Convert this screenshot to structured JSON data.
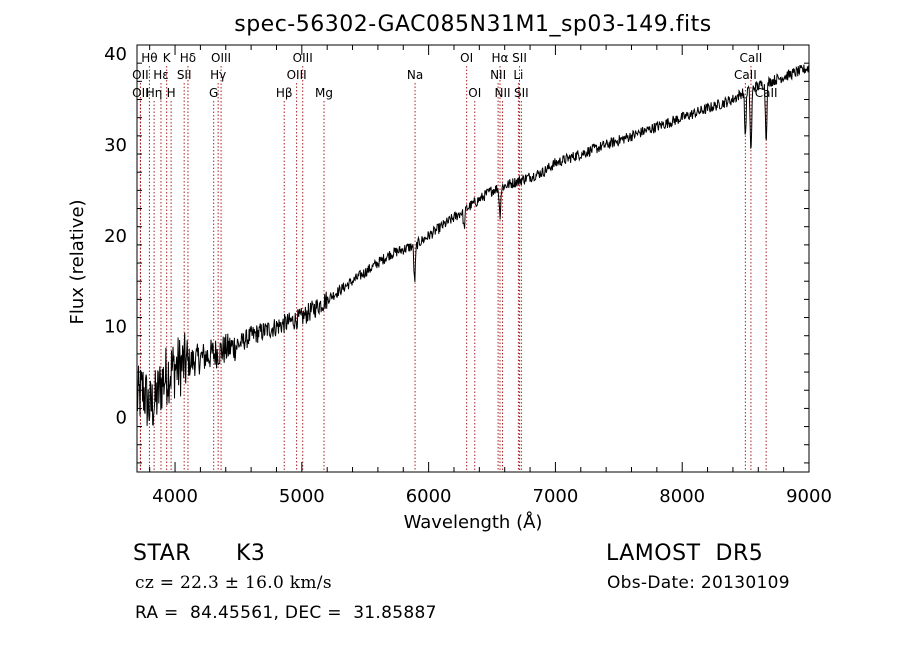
{
  "chart_data": {
    "type": "line",
    "title": "spec-56302-GAC085N31M1_sp03-149.fits",
    "xlabel": "Wavelength (Å)",
    "ylabel": "Flux (relative)",
    "xlim": [
      3700,
      9000
    ],
    "ylim": [
      -6,
      41
    ],
    "xticks": [
      4000,
      5000,
      6000,
      7000,
      8000,
      9000
    ],
    "yticks": [
      0,
      10,
      20,
      30,
      40
    ],
    "grid": false,
    "series": [
      {
        "x": [
          3700,
          3750,
          3800,
          3850,
          3900,
          3950,
          4000,
          4100,
          4200,
          4300,
          4400,
          4500,
          4600,
          4700,
          4800,
          4900,
          5000,
          5100,
          5200,
          5300,
          5400,
          5500,
          5600,
          5700,
          5800,
          5900,
          6000,
          6100,
          6200,
          6300,
          6400,
          6500,
          6600,
          6700,
          6800,
          6900,
          7000,
          7200,
          7400,
          7600,
          7800,
          8000,
          8200,
          8400,
          8500,
          8600,
          8700,
          8800,
          8900,
          9000
        ],
        "y": [
          2,
          3,
          1,
          2,
          4,
          5,
          5.5,
          6,
          6.5,
          7,
          7.5,
          8,
          9,
          9.5,
          10,
          10.5,
          11,
          12,
          13,
          14,
          15,
          16,
          17,
          18,
          18.5,
          19,
          20,
          21,
          22,
          23,
          24,
          25,
          25.5,
          26,
          26.5,
          27,
          28,
          29,
          30,
          31,
          32,
          33,
          34,
          35,
          36,
          36.5,
          37,
          37.5,
          38,
          38.5
        ]
      }
    ],
    "absorption_dips": [
      {
        "x": 5890,
        "depth": 4
      },
      {
        "x": 6280,
        "depth": 2
      },
      {
        "x": 6563,
        "depth": 3
      },
      {
        "x": 8498,
        "depth": 5
      },
      {
        "x": 8542,
        "depth": 7
      },
      {
        "x": 8662,
        "depth": 6
      }
    ],
    "lines": [
      {
        "label": "Hθ",
        "x": 3798,
        "row": 0
      },
      {
        "label": "OII",
        "x": 3727,
        "row": 1
      },
      {
        "label": "OII",
        "x": 3727,
        "row": 2
      },
      {
        "label": "Hη",
        "x": 3835,
        "row": 2
      },
      {
        "label": "Hε",
        "x": 3889,
        "row": 1
      },
      {
        "label": "K",
        "x": 3934,
        "row": 0
      },
      {
        "label": "H",
        "x": 3969,
        "row": 2
      },
      {
        "label": "Hδ",
        "x": 4102,
        "row": 0
      },
      {
        "label": "SII",
        "x": 4072,
        "row": 1
      },
      {
        "label": "OIII",
        "x": 4363,
        "row": 0
      },
      {
        "label": "Hγ",
        "x": 4340,
        "row": 1
      },
      {
        "label": "G",
        "x": 4305,
        "row": 2
      },
      {
        "label": "Hβ",
        "x": 4861,
        "row": 2
      },
      {
        "label": "OIII",
        "x": 5007,
        "row": 0
      },
      {
        "label": "OIII",
        "x": 4959,
        "row": 1
      },
      {
        "label": "Mg",
        "x": 5175,
        "row": 2
      },
      {
        "label": "Na",
        "x": 5893,
        "row": 1
      },
      {
        "label": "OI",
        "x": 6300,
        "row": 0
      },
      {
        "label": "OI",
        "x": 6364,
        "row": 2
      },
      {
        "label": "Hα",
        "x": 6563,
        "row": 0
      },
      {
        "label": "NII",
        "x": 6548,
        "row": 1
      },
      {
        "label": "NII",
        "x": 6583,
        "row": 2
      },
      {
        "label": "SII",
        "x": 6717,
        "row": 0
      },
      {
        "label": "Li",
        "x": 6708,
        "row": 1
      },
      {
        "label": "SII",
        "x": 6731,
        "row": 2
      },
      {
        "label": "CaII",
        "x": 8542,
        "row": 0
      },
      {
        "label": "CaII",
        "x": 8498,
        "row": 1
      },
      {
        "label": "CaII",
        "x": 8662,
        "row": 2
      }
    ]
  },
  "info": {
    "object_class": "STAR",
    "subclass": "K3",
    "survey": "LAMOST  DR5",
    "velocity": "cz = 22.3 ± 16.0 km/s",
    "obs_date": "Obs-Date: 20130109",
    "coords": "RA =  84.45561, DEC =  31.85887"
  },
  "colors": {
    "line_marker": "#aa2222",
    "spectrum": "#000000"
  }
}
